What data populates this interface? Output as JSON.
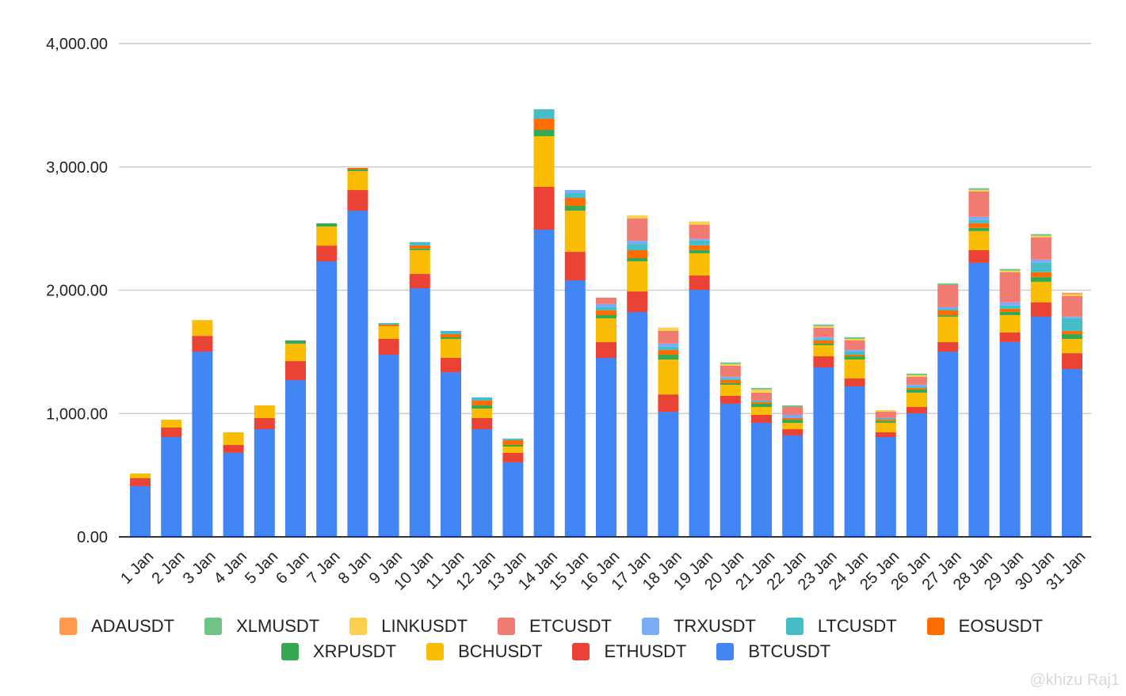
{
  "chart_data": {
    "type": "bar",
    "stacked": true,
    "title": "",
    "xlabel": "",
    "ylabel": "",
    "ylim": [
      0,
      4000
    ],
    "yticks": [
      "0.00",
      "1,000.00",
      "2,000.00",
      "3,000.00",
      "4,000.00"
    ],
    "ytick_values": [
      0,
      1000,
      2000,
      3000,
      4000
    ],
    "grid": true,
    "legend_position": "bottom",
    "categories": [
      "1 Jan",
      "2 Jan",
      "3 Jan",
      "4 Jan",
      "5 Jan",
      "6 Jan",
      "7 Jan",
      "8 Jan",
      "9 Jan",
      "10 Jan",
      "11 Jan",
      "12 Jan",
      "13 Jan",
      "14 Jan",
      "15 Jan",
      "16 Jan",
      "17 Jan",
      "18 Jan",
      "19 Jan",
      "20 Jan",
      "21 Jan",
      "22 Jan",
      "23 Jan",
      "24 Jan",
      "25 Jan",
      "26 Jan",
      "27 Jan",
      "28 Jan",
      "29 Jan",
      "30 Jan",
      "31 Jan"
    ],
    "series": [
      {
        "name": "BTCUSDT",
        "color": "#4285F4",
        "values": [
          411,
          809,
          1502,
          681,
          873,
          1271,
          2234,
          2645,
          1477,
          2016,
          1335,
          873,
          604,
          2491,
          2080,
          1451,
          1823,
          1014,
          2003,
          1079,
          925,
          822,
          1374,
          1220,
          809,
          1002,
          1502,
          2222,
          1580,
          1785,
          1361
        ]
      },
      {
        "name": "ETHUSDT",
        "color": "#EA4335",
        "values": [
          64,
          77,
          128,
          64,
          90,
          154,
          128,
          167,
          128,
          116,
          116,
          90,
          77,
          347,
          231,
          128,
          167,
          141,
          116,
          64,
          64,
          51,
          90,
          64,
          39,
          51,
          77,
          103,
          77,
          116,
          128
        ]
      },
      {
        "name": "BCHUSDT",
        "color": "#FBBC04",
        "values": [
          39,
          64,
          128,
          103,
          103,
          141,
          154,
          154,
          103,
          193,
          154,
          77,
          51,
          411,
          334,
          193,
          244,
          283,
          180,
          90,
          64,
          51,
          90,
          154,
          77,
          116,
          205,
          154,
          141,
          167,
          116
        ]
      },
      {
        "name": "XRPUSDT",
        "color": "#34A853",
        "values": [
          0,
          0,
          0,
          0,
          0,
          26,
          26,
          13,
          0,
          13,
          13,
          26,
          13,
          51,
          39,
          26,
          26,
          39,
          26,
          13,
          26,
          26,
          13,
          26,
          13,
          26,
          13,
          26,
          26,
          39,
          39
        ]
      },
      {
        "name": "EOSUSDT",
        "color": "#FF6D01",
        "values": [
          0,
          0,
          0,
          0,
          0,
          0,
          0,
          13,
          13,
          26,
          26,
          39,
          39,
          90,
          64,
          39,
          64,
          39,
          39,
          26,
          13,
          13,
          26,
          13,
          13,
          13,
          39,
          39,
          26,
          39,
          26
        ]
      },
      {
        "name": "LTCUSDT",
        "color": "#46BDC6",
        "values": [
          0,
          0,
          0,
          0,
          0,
          0,
          0,
          0,
          13,
          26,
          26,
          26,
          13,
          77,
          39,
          26,
          51,
          26,
          39,
          13,
          13,
          0,
          13,
          26,
          13,
          13,
          13,
          26,
          26,
          77,
          103
        ]
      },
      {
        "name": "TRXUSDT",
        "color": "#7BAAF7",
        "values": [
          0,
          0,
          0,
          0,
          0,
          0,
          0,
          0,
          0,
          0,
          0,
          0,
          0,
          0,
          26,
          26,
          26,
          26,
          13,
          13,
          0,
          26,
          13,
          13,
          0,
          13,
          13,
          26,
          26,
          26,
          13
        ]
      },
      {
        "name": "ETCUSDT",
        "color": "#F07B72",
        "values": [
          0,
          0,
          0,
          0,
          0,
          0,
          0,
          0,
          0,
          0,
          0,
          0,
          0,
          0,
          0,
          51,
          180,
          103,
          116,
          90,
          64,
          64,
          77,
          77,
          51,
          64,
          180,
          205,
          244,
          180,
          167
        ]
      },
      {
        "name": "LINKUSDT",
        "color": "#FCD04F",
        "values": [
          0,
          0,
          0,
          0,
          0,
          0,
          0,
          0,
          0,
          0,
          0,
          0,
          0,
          0,
          0,
          0,
          26,
          26,
          26,
          13,
          26,
          0,
          13,
          13,
          13,
          13,
          0,
          13,
          13,
          13,
          13
        ]
      },
      {
        "name": "XLMUSDT",
        "color": "#71C287",
        "values": [
          0,
          0,
          0,
          0,
          0,
          0,
          0,
          0,
          0,
          0,
          0,
          0,
          0,
          0,
          0,
          0,
          0,
          0,
          0,
          13,
          13,
          13,
          13,
          13,
          0,
          13,
          13,
          13,
          13,
          13,
          0
        ]
      },
      {
        "name": "ADAUSDT",
        "color": "#FF994D",
        "values": [
          0,
          0,
          0,
          0,
          0,
          0,
          0,
          0,
          0,
          0,
          0,
          0,
          0,
          0,
          0,
          0,
          0,
          0,
          0,
          0,
          0,
          0,
          0,
          0,
          0,
          0,
          0,
          0,
          0,
          0,
          13
        ]
      }
    ]
  },
  "legend": {
    "row1": [
      {
        "name": "ADAUSDT",
        "color": "#FF994D"
      },
      {
        "name": "XLMUSDT",
        "color": "#71C287"
      },
      {
        "name": "LINKUSDT",
        "color": "#FCD04F"
      },
      {
        "name": "ETCUSDT",
        "color": "#F07B72"
      },
      {
        "name": "TRXUSDT",
        "color": "#7BAAF7"
      },
      {
        "name": "LTCUSDT",
        "color": "#46BDC6"
      },
      {
        "name": "EOSUSDT",
        "color": "#FF6D01"
      }
    ],
    "row2": [
      {
        "name": "XRPUSDT",
        "color": "#34A853"
      },
      {
        "name": "BCHUSDT",
        "color": "#FBBC04"
      },
      {
        "name": "ETHUSDT",
        "color": "#EA4335"
      },
      {
        "name": "BTCUSDT",
        "color": "#4285F4"
      }
    ]
  },
  "watermark": "@khizu Raj1"
}
